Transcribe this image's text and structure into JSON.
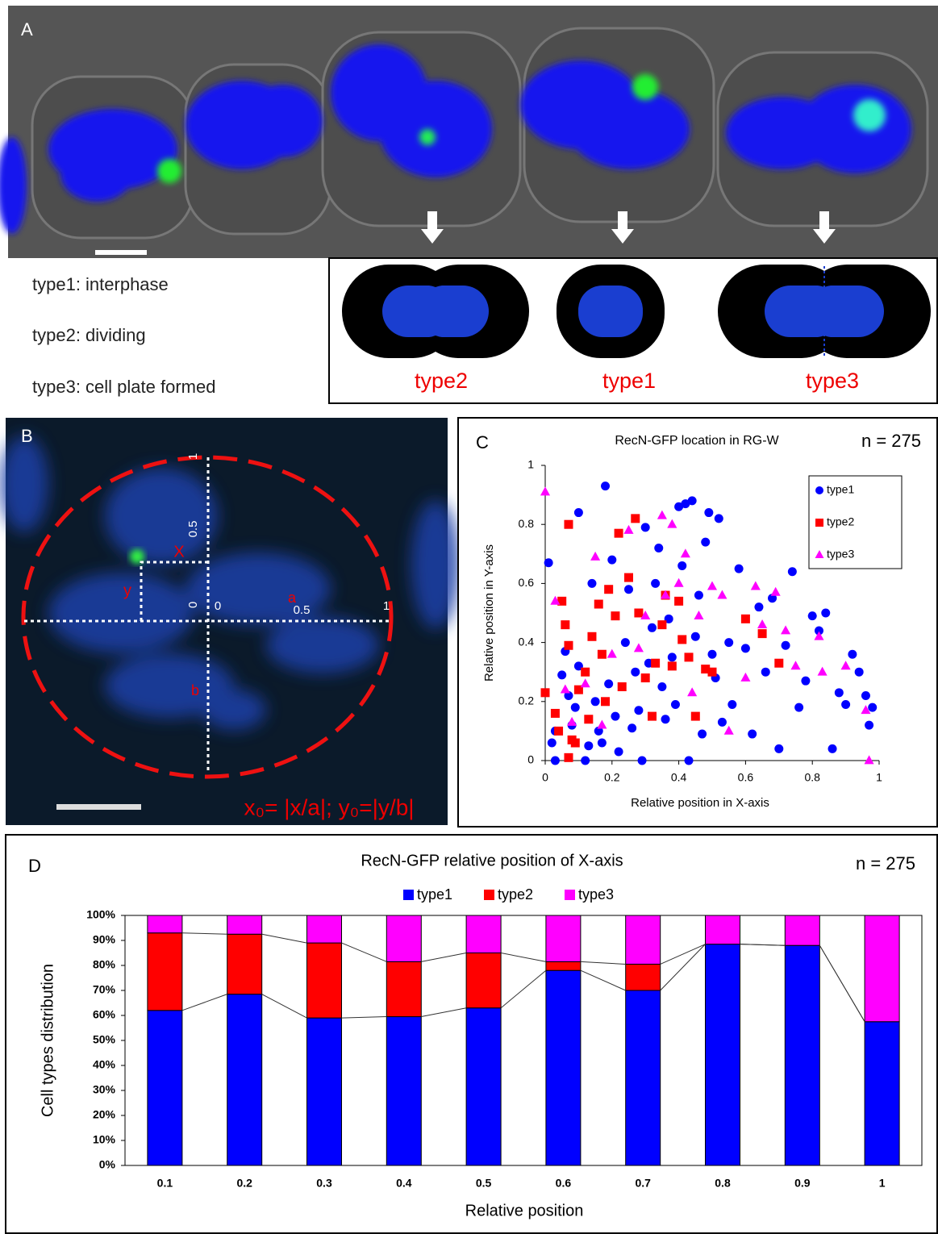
{
  "panel_a": {
    "label": "A",
    "legend": [
      "type1: interphase",
      "type2: dividing",
      "type3: cell plate formed"
    ],
    "diagram_labels": [
      "type2",
      "type1",
      "type3"
    ]
  },
  "panel_b": {
    "label": "B",
    "vertical_ticks": [
      "1",
      "0.5",
      "0"
    ],
    "horizontal_ticks": [
      "0",
      "0.5",
      "1"
    ],
    "x_label": "X",
    "y_label": "y",
    "a_label": "a",
    "b_label": "b",
    "formula": "x₀= |x/a|; y₀=|y/b|"
  },
  "chart_data": [
    {
      "type": "scatter",
      "panel_label": "C",
      "title": "RecN-GFP location in RG-W",
      "annotation": "n = 275",
      "x_label": "Relative position in X-axis",
      "y_label": "Relative position in Y-axis",
      "xlim": [
        0,
        1
      ],
      "ylim": [
        0,
        1
      ],
      "xticks": [
        0,
        0.2,
        0.4,
        0.6,
        0.8,
        1
      ],
      "yticks": [
        0,
        0.2,
        0.4,
        0.6,
        0.8,
        1
      ],
      "legend": "upper right",
      "series": [
        {
          "name": "type1",
          "color": "#0000ff",
          "marker": "circle",
          "x": [
            0.01,
            0.02,
            0.03,
            0.03,
            0.05,
            0.06,
            0.07,
            0.08,
            0.09,
            0.1,
            0.1,
            0.12,
            0.13,
            0.14,
            0.15,
            0.16,
            0.17,
            0.18,
            0.19,
            0.2,
            0.21,
            0.22,
            0.24,
            0.25,
            0.26,
            0.27,
            0.28,
            0.29,
            0.3,
            0.31,
            0.32,
            0.33,
            0.34,
            0.35,
            0.36,
            0.37,
            0.38,
            0.39,
            0.4,
            0.41,
            0.42,
            0.43,
            0.44,
            0.45,
            0.46,
            0.47,
            0.48,
            0.49,
            0.5,
            0.51,
            0.52,
            0.53,
            0.55,
            0.56,
            0.58,
            0.6,
            0.62,
            0.64,
            0.66,
            0.68,
            0.7,
            0.72,
            0.74,
            0.76,
            0.78,
            0.8,
            0.82,
            0.84,
            0.86,
            0.88,
            0.9,
            0.92,
            0.94,
            0.96,
            0.97,
            0.98
          ],
          "values": [
            0.67,
            0.06,
            0.0,
            0.1,
            0.29,
            0.37,
            0.22,
            0.12,
            0.18,
            0.84,
            0.32,
            0.0,
            0.05,
            0.6,
            0.2,
            0.1,
            0.06,
            0.93,
            0.26,
            0.68,
            0.15,
            0.03,
            0.4,
            0.58,
            0.11,
            0.3,
            0.17,
            0.0,
            0.79,
            0.33,
            0.45,
            0.6,
            0.72,
            0.25,
            0.14,
            0.48,
            0.35,
            0.19,
            0.86,
            0.66,
            0.87,
            0.0,
            0.88,
            0.42,
            0.56,
            0.09,
            0.74,
            0.84,
            0.36,
            0.28,
            0.82,
            0.13,
            0.4,
            0.19,
            0.65,
            0.38,
            0.09,
            0.52,
            0.3,
            0.55,
            0.04,
            0.39,
            0.64,
            0.18,
            0.27,
            0.49,
            0.44,
            0.5,
            0.04,
            0.23,
            0.19,
            0.36,
            0.3,
            0.22,
            0.12,
            0.18
          ]
        },
        {
          "name": "type2",
          "color": "#ff0000",
          "marker": "square",
          "x": [
            0.0,
            0.03,
            0.04,
            0.05,
            0.06,
            0.07,
            0.07,
            0.07,
            0.08,
            0.09,
            0.1,
            0.12,
            0.13,
            0.14,
            0.16,
            0.17,
            0.18,
            0.19,
            0.21,
            0.22,
            0.23,
            0.25,
            0.27,
            0.28,
            0.3,
            0.32,
            0.33,
            0.35,
            0.36,
            0.38,
            0.4,
            0.41,
            0.43,
            0.45,
            0.48,
            0.5,
            0.6,
            0.65,
            0.7
          ],
          "values": [
            0.23,
            0.16,
            0.1,
            0.54,
            0.46,
            0.01,
            0.39,
            0.8,
            0.07,
            0.06,
            0.24,
            0.3,
            0.14,
            0.42,
            0.53,
            0.36,
            0.2,
            0.58,
            0.49,
            0.77,
            0.25,
            0.62,
            0.82,
            0.5,
            0.28,
            0.15,
            0.33,
            0.46,
            0.56,
            0.32,
            0.54,
            0.41,
            0.35,
            0.15,
            0.31,
            0.3,
            0.48,
            0.43,
            0.33
          ]
        },
        {
          "name": "type3",
          "color": "#ff00ff",
          "marker": "triangle",
          "x": [
            0.0,
            0.03,
            0.06,
            0.08,
            0.12,
            0.15,
            0.17,
            0.2,
            0.25,
            0.28,
            0.3,
            0.35,
            0.36,
            0.38,
            0.4,
            0.42,
            0.44,
            0.46,
            0.5,
            0.53,
            0.55,
            0.6,
            0.63,
            0.65,
            0.69,
            0.72,
            0.75,
            0.82,
            0.83,
            0.9,
            0.96,
            0.97
          ],
          "values": [
            0.91,
            0.54,
            0.24,
            0.13,
            0.26,
            0.69,
            0.12,
            0.36,
            0.78,
            0.38,
            0.49,
            0.83,
            0.56,
            0.8,
            0.6,
            0.7,
            0.23,
            0.49,
            0.59,
            0.56,
            0.1,
            0.28,
            0.59,
            0.46,
            0.57,
            0.44,
            0.32,
            0.42,
            0.3,
            0.32,
            0.17,
            0.0
          ]
        }
      ]
    },
    {
      "type": "stacked_bar",
      "panel_label": "D",
      "title": "RecN-GFP relative position of X-axis",
      "annotation": "n = 275",
      "x_label": "Relative position",
      "y_label": "Cell types distribution",
      "categories": [
        "0.1",
        "0.2",
        "0.3",
        "0.4",
        "0.5",
        "0.6",
        "0.7",
        "0.8",
        "0.9",
        "1"
      ],
      "ylim": [
        0,
        100
      ],
      "yticks": [
        {
          "value": 0,
          "label": "0%"
        },
        {
          "value": 10,
          "label": "10%"
        },
        {
          "value": 20,
          "label": "20%"
        },
        {
          "value": 30,
          "label": "30%"
        },
        {
          "value": 40,
          "label": "40%"
        },
        {
          "value": 50,
          "label": "50%"
        },
        {
          "value": 60,
          "label": "60%"
        },
        {
          "value": 70,
          "label": "70%"
        },
        {
          "value": 80,
          "label": "80%"
        },
        {
          "value": 90,
          "label": "90%"
        },
        {
          "value": 100,
          "label": "100%"
        }
      ],
      "legend": "top",
      "connector_lines": true,
      "series": [
        {
          "name": "type1",
          "color": "#0000ff",
          "values": [
            62,
            68.5,
            59,
            59.5,
            63,
            78,
            70,
            88.5,
            88,
            57.5
          ]
        },
        {
          "name": "type2",
          "color": "#ff0000",
          "values": [
            31,
            24,
            30,
            22,
            22,
            3.5,
            10.5,
            0,
            0,
            0
          ]
        },
        {
          "name": "type3",
          "color": "#ff00ff",
          "values": [
            7,
            7.5,
            11,
            18.5,
            15,
            18.5,
            19.5,
            11.5,
            12,
            42.5
          ]
        }
      ]
    }
  ]
}
